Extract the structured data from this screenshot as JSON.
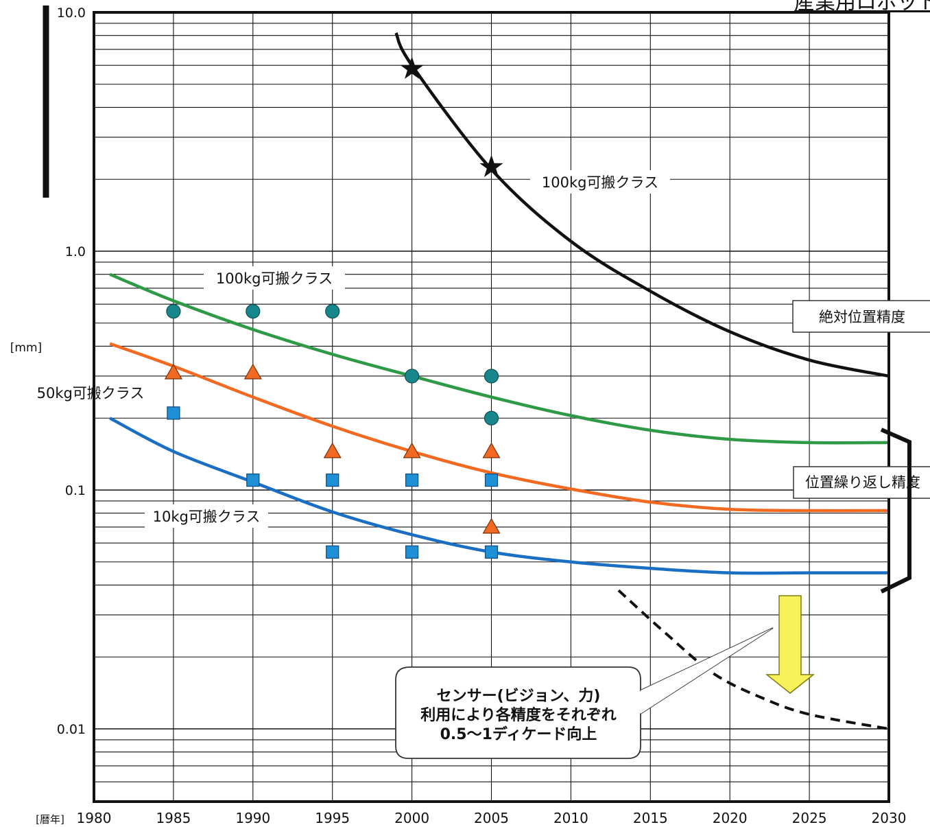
{
  "header": {
    "title": "産業用ロボット"
  },
  "chart_data": {
    "type": "scatter",
    "x_unit_label": "[暦年]",
    "y_unit_label": "[mm]",
    "xlim": [
      1980,
      2030
    ],
    "ylim": [
      0.006,
      10.0
    ],
    "y_scale": "log",
    "x_ticks": [
      "1980",
      "1985",
      "1990",
      "1995",
      "2000",
      "2005",
      "2010",
      "2015",
      "2020",
      "2025",
      "2030"
    ],
    "y_ticks": [
      {
        "value": 10.0,
        "label": "10.0"
      },
      {
        "value": 1.0,
        "label": "1.0"
      },
      {
        "value": 0.1,
        "label": "0.1"
      },
      {
        "value": 0.01,
        "label": "0.01"
      }
    ],
    "grid": true,
    "curves": [
      {
        "name": "abs-100kg",
        "color": "#111111",
        "style": "solid",
        "points": [
          [
            1999,
            8.2
          ],
          [
            2000,
            6.0
          ],
          [
            2005,
            2.2
          ],
          [
            2010,
            1.1
          ],
          [
            2015,
            0.68
          ],
          [
            2020,
            0.46
          ],
          [
            2025,
            0.35
          ],
          [
            2030,
            0.3
          ]
        ]
      },
      {
        "name": "rep-100kg",
        "color": "#2e9a46",
        "style": "solid",
        "points": [
          [
            1981,
            0.8
          ],
          [
            1985,
            0.62
          ],
          [
            1990,
            0.47
          ],
          [
            1995,
            0.37
          ],
          [
            2000,
            0.3
          ],
          [
            2005,
            0.245
          ],
          [
            2010,
            0.205
          ],
          [
            2015,
            0.178
          ],
          [
            2020,
            0.163
          ],
          [
            2025,
            0.158
          ],
          [
            2030,
            0.158
          ]
        ]
      },
      {
        "name": "rep-50kg",
        "color": "#f26a21",
        "style": "solid",
        "points": [
          [
            1981,
            0.41
          ],
          [
            1985,
            0.33
          ],
          [
            1990,
            0.245
          ],
          [
            1995,
            0.185
          ],
          [
            2000,
            0.145
          ],
          [
            2005,
            0.118
          ],
          [
            2010,
            0.101
          ],
          [
            2015,
            0.089
          ],
          [
            2020,
            0.083
          ],
          [
            2025,
            0.082
          ],
          [
            2030,
            0.082
          ]
        ]
      },
      {
        "name": "rep-10kg",
        "color": "#1a6fc4",
        "style": "solid",
        "points": [
          [
            1981,
            0.2
          ],
          [
            1985,
            0.145
          ],
          [
            1990,
            0.108
          ],
          [
            1995,
            0.081
          ],
          [
            2000,
            0.065
          ],
          [
            2005,
            0.055
          ],
          [
            2010,
            0.05
          ],
          [
            2015,
            0.047
          ],
          [
            2020,
            0.045
          ],
          [
            2025,
            0.045
          ],
          [
            2030,
            0.045
          ]
        ]
      },
      {
        "name": "sensor-future",
        "color": "#111111",
        "style": "dashed",
        "points": [
          [
            2013,
            0.038
          ],
          [
            2016,
            0.025
          ],
          [
            2019,
            0.017
          ],
          [
            2022,
            0.0135
          ],
          [
            2025,
            0.0115
          ],
          [
            2030,
            0.01
          ]
        ]
      }
    ],
    "markers": [
      {
        "shape": "star",
        "color": "#111111",
        "points": [
          [
            2000,
            5.8
          ],
          [
            2005,
            2.25
          ]
        ]
      },
      {
        "shape": "circle",
        "color": "#17878c",
        "points": [
          [
            1985,
            0.56
          ],
          [
            1990,
            0.56
          ],
          [
            1995,
            0.56
          ],
          [
            2000,
            0.3
          ],
          [
            2005,
            0.3
          ],
          [
            2005,
            0.2
          ]
        ]
      },
      {
        "shape": "triangle",
        "color": "#f26a21",
        "points": [
          [
            1985,
            0.31
          ],
          [
            1990,
            0.31
          ],
          [
            1995,
            0.145
          ],
          [
            2000,
            0.145
          ],
          [
            2005,
            0.145
          ],
          [
            2005,
            0.07
          ]
        ]
      },
      {
        "shape": "square",
        "color": "#1f8fd6",
        "points": [
          [
            1985,
            0.21
          ],
          [
            1990,
            0.11
          ],
          [
            1995,
            0.11
          ],
          [
            2000,
            0.11
          ],
          [
            2005,
            0.11
          ],
          [
            1995,
            0.055
          ],
          [
            2000,
            0.055
          ],
          [
            2005,
            0.055
          ]
        ]
      }
    ],
    "annotations": {
      "abs_100kg": "100kg可搬クラス",
      "rep_100kg": "100kg可搬クラス",
      "rep_50kg": "50kg可搬クラス",
      "rep_10kg": "10kg可搬クラス",
      "legend_absolute": "絶対位置精度",
      "legend_repeat": "位置繰り返し精度",
      "callout_lines": [
        "センサー(ビジョン、力)",
        "利用により各精度をそれぞれ",
        "0.5〜1ディケード向上"
      ]
    }
  }
}
